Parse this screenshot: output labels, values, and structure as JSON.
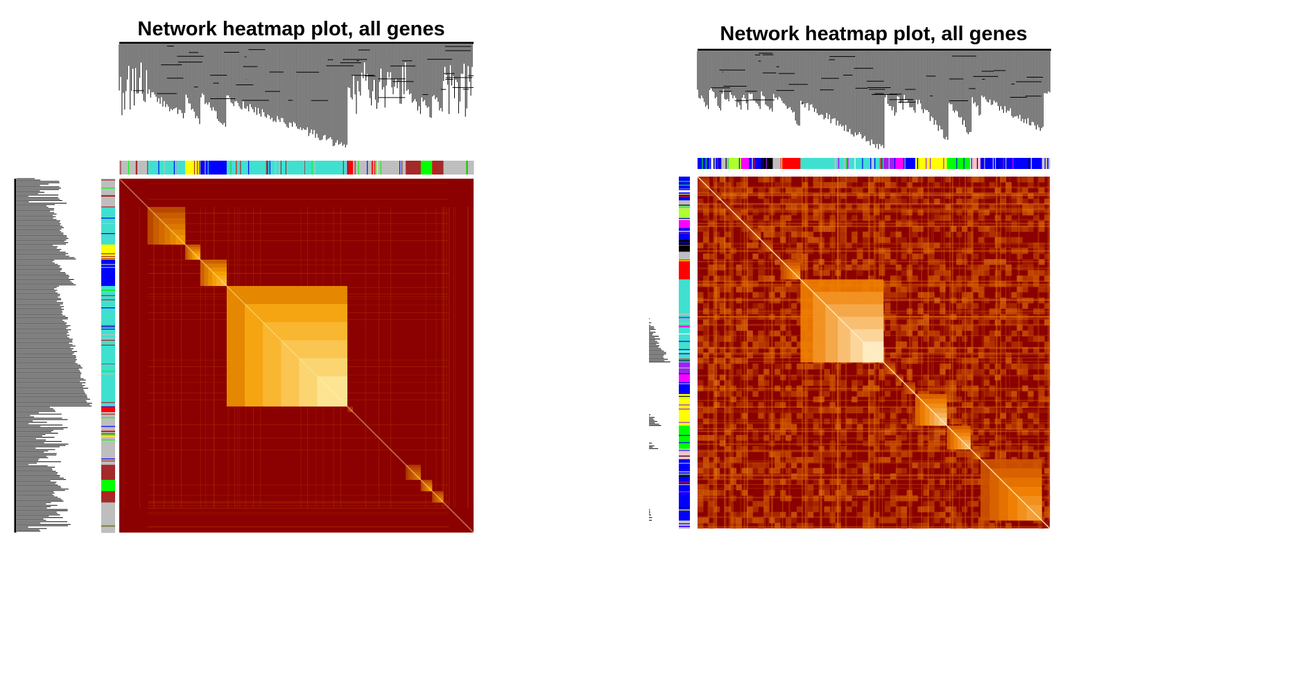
{
  "chart_data": [
    {
      "type": "heatmap",
      "title": "Network heatmap plot, all genes",
      "xlabel": "",
      "ylabel": "",
      "value_range": [
        0,
        1
      ],
      "colors": {
        "low": "#8B0000",
        "mid": "#F5A000",
        "high": "#FFF8C0",
        "background": "#8B0000"
      },
      "module_colors": [
        "#bebebe",
        "#40e0d0",
        "#ffff00",
        "#0000ff",
        "#40e0d0",
        "#ff0000",
        "#bebebe",
        "#a52a2a",
        "#00ff00",
        "#a52a2a",
        "#bebebe"
      ],
      "module_sizes": [
        0.075,
        0.1,
        0.04,
        0.07,
        0.32,
        0.015,
        0.14,
        0.04,
        0.03,
        0.03,
        0.08
      ],
      "modules_strength": [
        0.0,
        0.45,
        0.55,
        0.6,
        0.85,
        0.2,
        0.0,
        0.35,
        0.45,
        0.4,
        0.0
      ]
    },
    {
      "type": "heatmap",
      "title": "Network heatmap plot, all genes",
      "xlabel": "",
      "ylabel": "",
      "value_range": [
        0,
        1
      ],
      "colors": {
        "low": "#8B0000",
        "mid": "#F08000",
        "high": "#FFFBE0",
        "background": "#8B0000"
      },
      "module_colors": [
        "#0000ff",
        "#ffffff",
        "#0000ff",
        "#bebebe",
        "#adff2f",
        "#ff00ff",
        "#0000ff",
        "#000000",
        "#bebebe",
        "#ff0000",
        "#40e0d0",
        "#a020f0",
        "#ff00ff",
        "#0000ff",
        "#ffff00",
        "#00ff00",
        "#ffc0cb",
        "#0000ff",
        "#bebebe"
      ],
      "module_sizes": [
        0.03,
        0.01,
        0.02,
        0.02,
        0.03,
        0.02,
        0.03,
        0.03,
        0.02,
        0.05,
        0.21,
        0.03,
        0.02,
        0.03,
        0.08,
        0.06,
        0.025,
        0.155,
        0.02
      ],
      "modules_strength": [
        0.3,
        0.1,
        0.3,
        0.2,
        0.3,
        0.3,
        0.35,
        0.35,
        0.2,
        0.55,
        0.9,
        0.4,
        0.35,
        0.4,
        0.75,
        0.7,
        0.45,
        0.6,
        0.1
      ]
    }
  ]
}
